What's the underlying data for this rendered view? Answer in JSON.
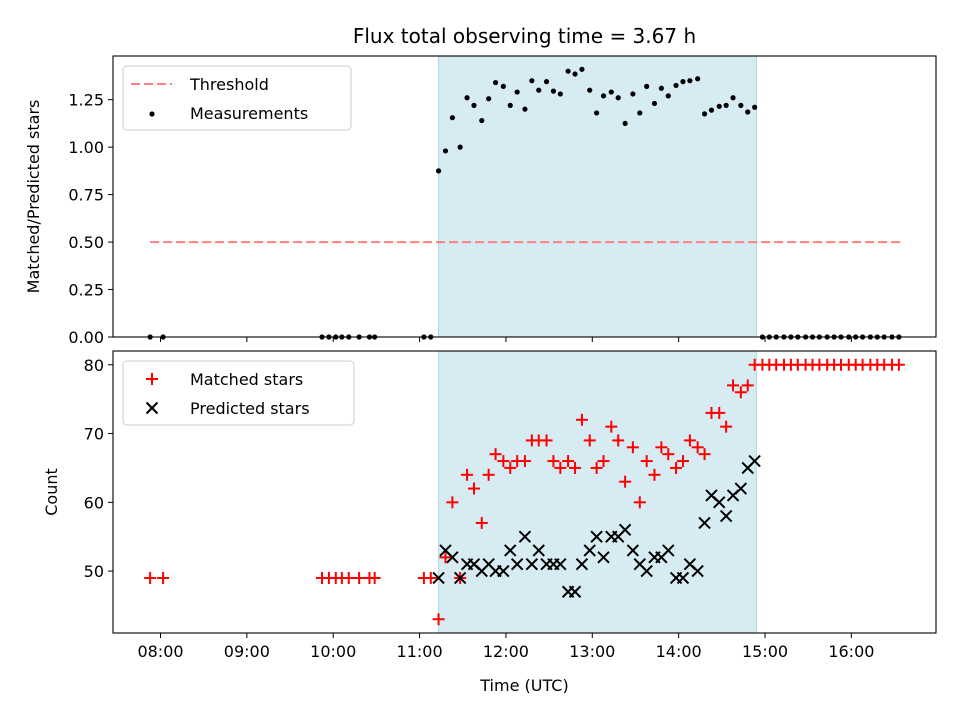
{
  "chart_data": [
    {
      "type": "scatter",
      "panel": "top",
      "title": "Flux total observing time = 3.67 h",
      "xlabel": "",
      "ylabel": "Matched/Predicted stars",
      "xlim": [
        7.45,
        16.98
      ],
      "ylim": [
        0,
        1.48
      ],
      "yticks": [
        "0.00",
        "0.25",
        "0.50",
        "0.75",
        "1.00",
        "1.25"
      ],
      "ytick_values": [
        0,
        0.25,
        0.5,
        0.75,
        1.0,
        1.25
      ],
      "shaded_span": [
        11.22,
        14.9
      ],
      "shaded_color": "#add8e6",
      "legend": [
        "Threshold",
        "Measurements"
      ],
      "legend_loc": "upper left",
      "threshold": {
        "name": "Threshold",
        "value": 0.5,
        "x": [
          7.88,
          16.58
        ],
        "color": "#ff7f7f",
        "style": "dashed"
      },
      "series": [
        {
          "name": "Measurements",
          "color": "#000000",
          "x": [
            7.88,
            8.03,
            9.87,
            9.95,
            10.03,
            10.1,
            10.18,
            10.3,
            10.42,
            10.48,
            11.05,
            11.13,
            11.22,
            11.3,
            11.38,
            11.47,
            11.55,
            11.63,
            11.72,
            11.8,
            11.88,
            11.97,
            12.05,
            12.13,
            12.22,
            12.3,
            12.38,
            12.47,
            12.55,
            12.63,
            12.72,
            12.8,
            12.88,
            12.97,
            13.05,
            13.13,
            13.22,
            13.3,
            13.38,
            13.47,
            13.55,
            13.63,
            13.72,
            13.8,
            13.88,
            13.97,
            14.05,
            14.13,
            14.22,
            14.3,
            14.38,
            14.47,
            14.55,
            14.63,
            14.72,
            14.8,
            14.88,
            14.97,
            15.05,
            15.13,
            15.22,
            15.3,
            15.38,
            15.47,
            15.55,
            15.63,
            15.72,
            15.8,
            15.88,
            15.97,
            16.05,
            16.13,
            16.22,
            16.3,
            16.38,
            16.47,
            16.55
          ],
          "y": [
            0,
            0,
            0,
            0,
            0,
            0,
            0,
            0,
            0,
            0,
            0,
            0,
            0.875,
            0.98,
            1.155,
            1.0,
            1.26,
            1.22,
            1.14,
            1.255,
            1.34,
            1.32,
            1.22,
            1.29,
            1.2,
            1.35,
            1.3,
            1.345,
            1.295,
            1.28,
            1.4,
            1.385,
            1.41,
            1.3,
            1.18,
            1.27,
            1.29,
            1.26,
            1.125,
            1.28,
            1.18,
            1.32,
            1.23,
            1.31,
            1.27,
            1.325,
            1.345,
            1.35,
            1.36,
            1.175,
            1.195,
            1.215,
            1.22,
            1.26,
            1.22,
            1.185,
            1.21,
            0,
            0,
            0,
            0,
            0,
            0,
            0,
            0,
            0,
            0,
            0,
            0,
            0,
            0,
            0,
            0,
            0,
            0,
            0,
            0
          ]
        }
      ]
    },
    {
      "type": "scatter",
      "panel": "bottom",
      "title": "",
      "xlabel": "Time (UTC)",
      "ylabel": "Count",
      "xlim": [
        7.45,
        16.98
      ],
      "ylim": [
        41,
        82
      ],
      "xticks": [
        "08:00",
        "09:00",
        "10:00",
        "11:00",
        "12:00",
        "13:00",
        "14:00",
        "15:00",
        "16:00"
      ],
      "xtick_values": [
        8,
        9,
        10,
        11,
        12,
        13,
        14,
        15,
        16
      ],
      "yticks": [
        "50",
        "60",
        "70",
        "80"
      ],
      "ytick_values": [
        50,
        60,
        70,
        80
      ],
      "shaded_span": [
        11.22,
        14.9
      ],
      "shaded_color": "#add8e6",
      "legend": [
        "Matched stars",
        "Predicted stars"
      ],
      "legend_loc": "upper left",
      "series": [
        {
          "name": "Matched stars",
          "marker": "+",
          "color": "#ff0000",
          "x": [
            7.88,
            8.03,
            9.87,
            9.95,
            10.03,
            10.1,
            10.18,
            10.3,
            10.42,
            10.48,
            11.05,
            11.13,
            11.22,
            11.3,
            11.38,
            11.47,
            11.55,
            11.63,
            11.72,
            11.8,
            11.88,
            11.97,
            12.05,
            12.13,
            12.22,
            12.3,
            12.38,
            12.47,
            12.55,
            12.63,
            12.72,
            12.8,
            12.88,
            12.97,
            13.05,
            13.13,
            13.22,
            13.3,
            13.38,
            13.47,
            13.55,
            13.63,
            13.72,
            13.8,
            13.88,
            13.97,
            14.05,
            14.13,
            14.22,
            14.3,
            14.38,
            14.47,
            14.55,
            14.63,
            14.72,
            14.8,
            14.88,
            14.97,
            15.05,
            15.13,
            15.22,
            15.3,
            15.38,
            15.47,
            15.55,
            15.63,
            15.72,
            15.8,
            15.88,
            15.97,
            16.05,
            16.13,
            16.22,
            16.3,
            16.38,
            16.47,
            16.55
          ],
          "y": [
            49,
            49,
            49,
            49,
            49,
            49,
            49,
            49,
            49,
            49,
            49,
            49,
            43,
            52,
            60,
            49,
            64,
            62,
            57,
            64,
            67,
            66,
            65,
            66,
            66,
            69,
            69,
            69,
            66,
            65,
            66,
            65,
            72,
            69,
            65,
            66,
            71,
            69,
            63,
            68,
            60,
            66,
            64,
            68,
            67,
            65,
            66,
            69,
            68,
            67,
            73,
            73,
            71,
            77,
            76,
            77,
            80,
            80,
            80,
            80,
            80,
            80,
            80,
            80,
            80,
            80,
            80,
            80,
            80,
            80,
            80,
            80,
            80,
            80,
            80,
            80,
            80
          ]
        },
        {
          "name": "Predicted stars",
          "marker": "x",
          "color": "#000000",
          "x": [
            11.22,
            11.3,
            11.38,
            11.47,
            11.55,
            11.63,
            11.72,
            11.8,
            11.88,
            11.97,
            12.05,
            12.13,
            12.22,
            12.3,
            12.38,
            12.47,
            12.55,
            12.63,
            12.72,
            12.8,
            12.88,
            12.97,
            13.05,
            13.13,
            13.22,
            13.3,
            13.38,
            13.47,
            13.55,
            13.63,
            13.72,
            13.8,
            13.88,
            13.97,
            14.05,
            14.13,
            14.22,
            14.3,
            14.38,
            14.47,
            14.55,
            14.63,
            14.72,
            14.8,
            14.88
          ],
          "y": [
            49,
            53,
            52,
            49,
            51,
            51,
            50,
            51,
            50,
            50,
            53,
            51,
            55,
            51,
            53,
            51,
            51,
            51,
            47,
            47,
            51,
            53,
            55,
            52,
            55,
            55,
            56,
            53,
            51,
            50,
            52,
            52,
            53,
            49,
            49,
            51,
            50,
            57,
            61,
            60,
            58,
            61,
            62,
            65,
            66
          ]
        }
      ]
    }
  ]
}
